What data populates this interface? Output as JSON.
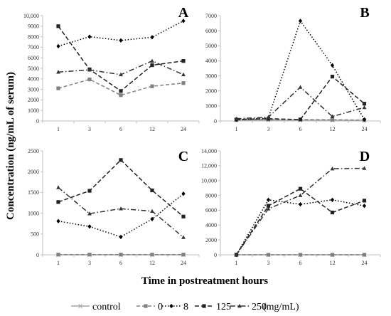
{
  "figure": {
    "ylabel": "Concentration (ng/mL of serum)",
    "xlabel": "Time in postreatment hours",
    "legend_suffix": "(mg/mL)"
  },
  "legend": [
    "control",
    "0",
    "8",
    "125",
    "250"
  ],
  "series_styles": {
    "control": {
      "color": "#a6a6a6",
      "dash": "",
      "marker": "x"
    },
    "0": {
      "color": "#808080",
      "dash": "5,3",
      "marker": "square"
    },
    "8": {
      "color": "#000000",
      "dash": "1.5,2.5",
      "marker": "diamond"
    },
    "125": {
      "color": "#222222",
      "dash": "6,3",
      "marker": "square"
    },
    "250": {
      "color": "#333333",
      "dash": "7,3,1.5,3",
      "marker": "triangle"
    }
  },
  "chart_data": [
    {
      "type": "line",
      "panel": "A",
      "x": [
        "1",
        "3",
        "6",
        "12",
        "24"
      ],
      "ylim": [
        0,
        10000
      ],
      "yticks": [
        "0",
        "1000",
        "2000",
        "3000",
        "4000",
        "5000",
        "6000",
        "7000",
        "8000",
        "9000",
        "10,000"
      ],
      "series": [
        {
          "name": "0",
          "values": [
            3100,
            3950,
            2450,
            3300,
            3600
          ]
        },
        {
          "name": "8",
          "values": [
            7100,
            8000,
            7650,
            7950,
            9500
          ]
        },
        {
          "name": "125",
          "values": [
            9000,
            4900,
            2850,
            5300,
            5700
          ]
        },
        {
          "name": "250",
          "values": [
            4650,
            4850,
            4400,
            5700,
            4400
          ]
        }
      ]
    },
    {
      "type": "line",
      "panel": "B",
      "x": [
        "1",
        "3",
        "6",
        "12",
        "24"
      ],
      "ylim": [
        0,
        7000
      ],
      "yticks": [
        "0",
        "1000",
        "2000",
        "3000",
        "4000",
        "5000",
        "6000",
        "7000"
      ],
      "series": [
        {
          "name": "control",
          "values": [
            50,
            60,
            50,
            50,
            40
          ]
        },
        {
          "name": "0",
          "values": [
            80,
            100,
            100,
            80,
            60
          ]
        },
        {
          "name": "8",
          "values": [
            80,
            200,
            6650,
            3700,
            100
          ]
        },
        {
          "name": "125",
          "values": [
            100,
            150,
            100,
            2950,
            1150
          ]
        },
        {
          "name": "250",
          "values": [
            150,
            250,
            2250,
            300,
            900
          ]
        }
      ]
    },
    {
      "type": "line",
      "panel": "C",
      "x": [
        "1",
        "3",
        "6",
        "12",
        "24"
      ],
      "ylim": [
        0,
        2500
      ],
      "yticks": [
        "0",
        "500",
        "1000",
        "1500",
        "2000",
        "2500"
      ],
      "series": [
        {
          "name": "control",
          "values": [
            0,
            0,
            0,
            0,
            0
          ]
        },
        {
          "name": "0",
          "values": [
            5,
            5,
            5,
            5,
            5
          ]
        },
        {
          "name": "8",
          "values": [
            810,
            680,
            430,
            860,
            1470
          ]
        },
        {
          "name": "125",
          "values": [
            1270,
            1540,
            2280,
            1550,
            920
          ]
        },
        {
          "name": "250",
          "values": [
            1620,
            990,
            1110,
            1050,
            420
          ]
        }
      ]
    },
    {
      "type": "line",
      "panel": "D",
      "x": [
        "1",
        "3",
        "6",
        "12",
        "24"
      ],
      "ylim": [
        0,
        14000
      ],
      "yticks": [
        "0",
        "2000",
        "4000",
        "6000",
        "8000",
        "10,000",
        "12,000",
        "14,000"
      ],
      "series": [
        {
          "name": "control",
          "values": [
            0,
            0,
            0,
            0,
            0
          ]
        },
        {
          "name": "0",
          "values": [
            0,
            0,
            0,
            0,
            0
          ]
        },
        {
          "name": "8",
          "values": [
            0,
            7400,
            6800,
            7400,
            6600
          ]
        },
        {
          "name": "125",
          "values": [
            0,
            6600,
            8900,
            5700,
            7300
          ]
        },
        {
          "name": "250",
          "values": [
            0,
            6200,
            8000,
            11600,
            11650
          ]
        }
      ]
    }
  ]
}
